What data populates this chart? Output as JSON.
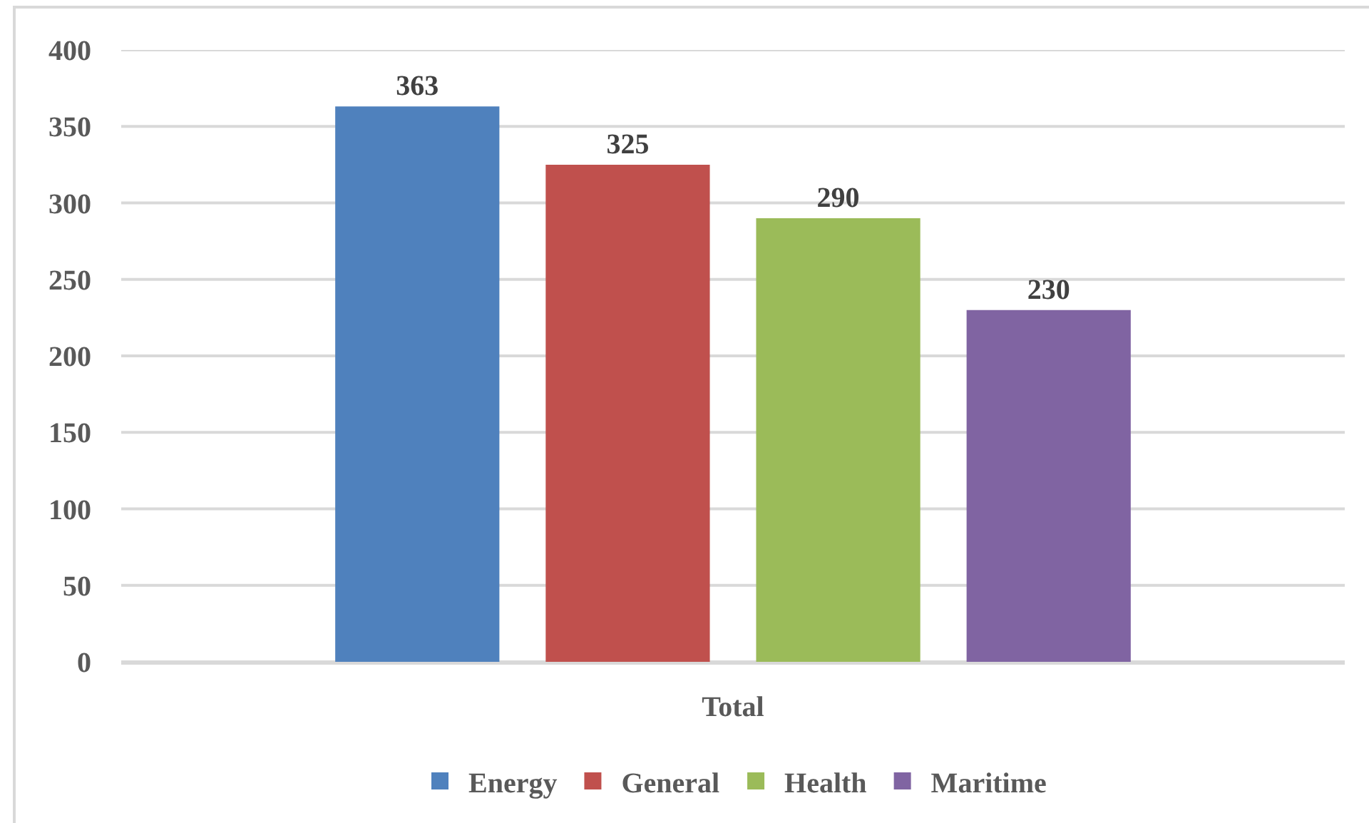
{
  "chart_data": {
    "type": "bar",
    "categories": [
      "Total"
    ],
    "series": [
      {
        "name": "Energy",
        "color": "#4f81bd",
        "values": [
          363
        ]
      },
      {
        "name": "General",
        "color": "#c0504d",
        "values": [
          325
        ]
      },
      {
        "name": "Health",
        "color": "#9bbb59",
        "values": [
          290
        ]
      },
      {
        "name": "Maritime",
        "color": "#8064a2",
        "values": [
          230
        ]
      }
    ],
    "ylim": [
      0,
      400
    ],
    "yticks": [
      0,
      50,
      100,
      150,
      200,
      250,
      300,
      350,
      400
    ],
    "grid": "y",
    "legend": "bottom",
    "data_labels": true
  }
}
